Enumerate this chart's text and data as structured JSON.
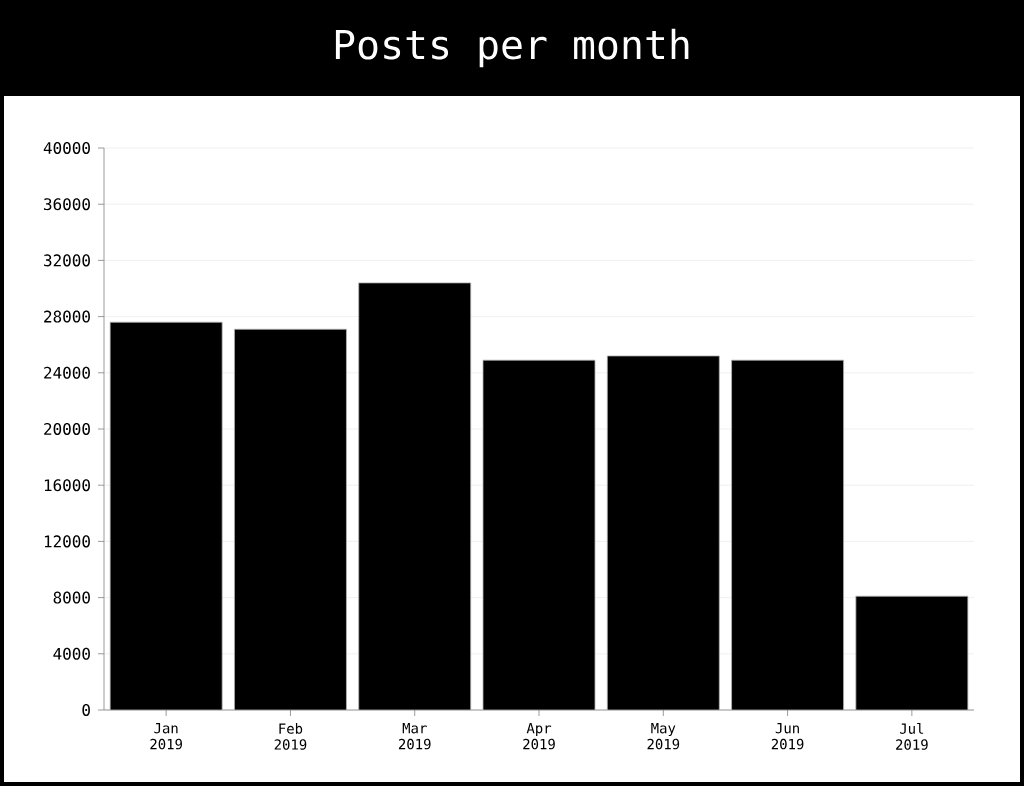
{
  "chart_data": {
    "type": "bar",
    "title": "Posts per month",
    "categories": [
      "Jan 2019",
      "Feb 2019",
      "Mar 2019",
      "Apr 2019",
      "May 2019",
      "Jun 2019",
      "Jul 2019"
    ],
    "values": [
      27600,
      27100,
      30400,
      24900,
      25200,
      24900,
      8100
    ],
    "color": "#000000",
    "ylim": [
      0,
      40000
    ],
    "yticks": [
      0,
      4000,
      8000,
      12000,
      16000,
      20000,
      24000,
      28000,
      32000,
      36000,
      40000
    ],
    "grid": "y"
  }
}
